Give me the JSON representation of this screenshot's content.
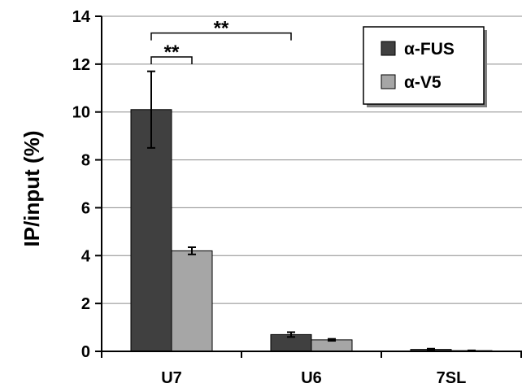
{
  "chart_data": {
    "type": "bar",
    "title": "",
    "xlabel": "",
    "ylabel": "IP/input (%)",
    "categories": [
      "U7",
      "U6",
      "7SL"
    ],
    "ylim": [
      0,
      14
    ],
    "yticks": [
      0,
      2,
      4,
      6,
      8,
      10,
      12,
      14
    ],
    "grid": true,
    "legend_position": "top-right",
    "series": [
      {
        "name": "α-FUS",
        "color": "#404040",
        "values": [
          10.1,
          0.7,
          0.08
        ],
        "errors": [
          1.6,
          0.1,
          0.03
        ]
      },
      {
        "name": "α-V5",
        "color": "#a6a6a6",
        "values": [
          4.2,
          0.48,
          0.03
        ],
        "errors": [
          0.15,
          0.04,
          0.01
        ]
      }
    ],
    "annotations": [
      {
        "text": "**",
        "from": {
          "category": "U7",
          "series": 0
        },
        "to": {
          "category": "U7",
          "series": 1
        },
        "level": 12.3
      },
      {
        "text": "**",
        "from": {
          "category": "U7",
          "series": 0
        },
        "to": {
          "category": "U6",
          "series": 0
        },
        "level": 13.3
      }
    ]
  }
}
